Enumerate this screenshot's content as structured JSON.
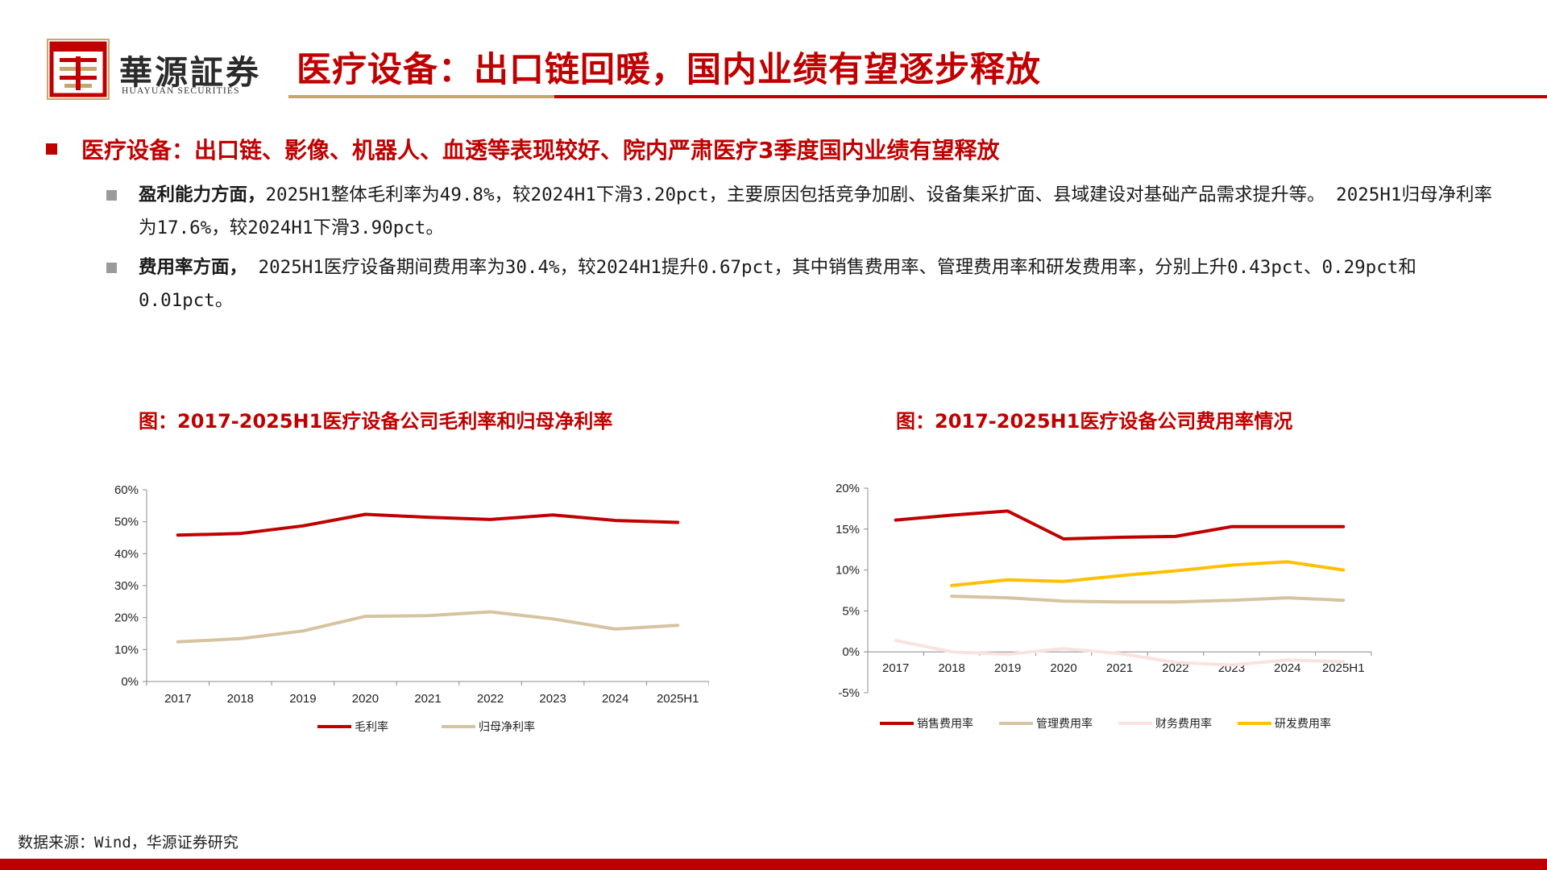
{
  "brand": {
    "name_cn": "華源証券",
    "name_en": "HUAYUAN SECURITIES"
  },
  "page_title": "医疗设备：出口链回暖，国内业绩有望逐步释放",
  "section_heading": "医疗设备：出口链、影像、机器人、血透等表现较好、院内严肃医疗3季度国内业绩有望释放",
  "bullets": [
    {
      "label": "盈利能力方面，",
      "text": "2025H1整体毛利率为49.8%，较2024H1下滑3.20pct，主要原因包括竞争加剧、设备集采扩面、县域建设对基础产品需求提升等。 2025H1归母净利率为17.6%，较2024H1下滑3.90pct。"
    },
    {
      "label": "费用率方面，",
      "text": " 2025H1医疗设备期间费用率为30.4%，较2024H1提升0.67pct，其中销售费用率、管理费用率和研发费用率，分别上升0.43pct、0.29pct和0.01pct。"
    }
  ],
  "source": "数据来源：Wind，华源证券研究",
  "colors": {
    "accent": "#c00000",
    "gold": "#c8a46e"
  },
  "chart_data": [
    {
      "type": "line",
      "title": "图：2017-2025H1医疗设备公司毛利率和归母净利率",
      "categories": [
        "2017",
        "2018",
        "2019",
        "2020",
        "2021",
        "2022",
        "2023",
        "2024",
        "2025H1"
      ],
      "ylim": [
        0,
        60
      ],
      "yticks": [
        "0%",
        "10%",
        "20%",
        "30%",
        "40%",
        "50%",
        "60%"
      ],
      "legend": "bottom",
      "grid": false,
      "series": [
        {
          "name": "毛利率",
          "color": "#c00000",
          "values": [
            45.8,
            46.3,
            48.7,
            52.3,
            51.4,
            50.7,
            52.1,
            50.4,
            49.8
          ]
        },
        {
          "name": "归母净利率",
          "color": "#d6c3a0",
          "values": [
            12.4,
            13.4,
            15.8,
            20.4,
            20.6,
            21.8,
            19.6,
            16.4,
            17.6
          ]
        }
      ]
    },
    {
      "type": "line",
      "title": "图：2017-2025H1医疗设备公司费用率情况",
      "categories": [
        "2017",
        "2018",
        "2019",
        "2020",
        "2021",
        "2022",
        "2023",
        "2024",
        "2025H1"
      ],
      "ylim": [
        -5,
        20
      ],
      "yticks": [
        "-5%",
        "0%",
        "5%",
        "10%",
        "15%",
        "20%"
      ],
      "legend": "bottom",
      "grid": false,
      "series": [
        {
          "name": "销售费用率",
          "color": "#c00000",
          "values": [
            16.1,
            16.7,
            17.2,
            13.8,
            14.0,
            14.1,
            15.3,
            15.3,
            15.3
          ]
        },
        {
          "name": "管理费用率",
          "color": "#d6c3a0",
          "values": [
            null,
            6.8,
            6.6,
            6.2,
            6.1,
            6.1,
            6.3,
            6.6,
            6.3
          ]
        },
        {
          "name": "财务费用率",
          "color": "#fae3df",
          "values": [
            1.4,
            0.0,
            -0.3,
            0.4,
            -0.2,
            -1.3,
            -1.6,
            -1.0,
            -1.2
          ]
        },
        {
          "name": "研发费用率",
          "color": "#ffc000",
          "values": [
            null,
            8.1,
            8.8,
            8.6,
            9.3,
            9.9,
            10.6,
            11.0,
            10.0
          ]
        }
      ]
    }
  ]
}
